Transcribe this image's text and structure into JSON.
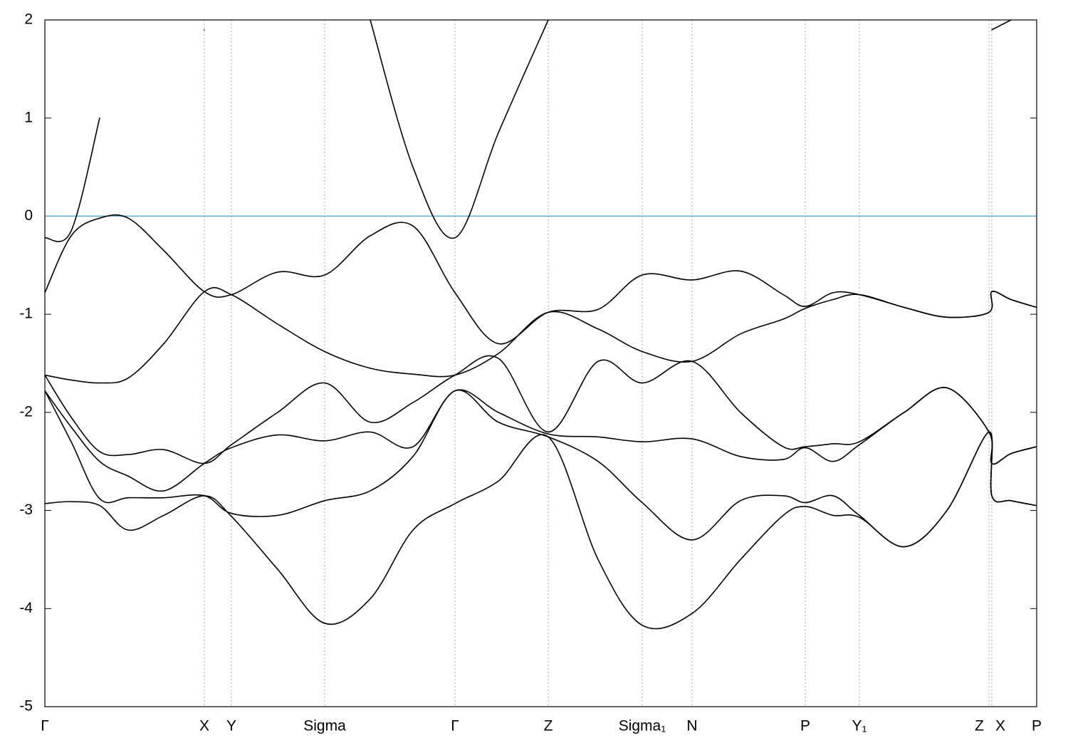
{
  "chart_data": {
    "type": "line",
    "x": [
      0,
      0.37,
      0.77,
      1.17,
      1.67,
      2.24,
      2.62,
      3.27,
      3.93,
      4.57,
      5.17,
      5.76,
      6.37,
      7.07,
      7.77,
      8.39,
      9.09,
      9.77,
      10.37,
      10.68,
      11.07,
      11.44,
      12.07,
      12.67,
      13.26,
      13.3,
      13.57,
      13.93
    ],
    "series": [
      {
        "color": "#000000",
        "values": [
          -2.93,
          -2.91,
          -2.95,
          -3.2,
          -3.05,
          -2.85,
          -3.06,
          -3.6,
          -4.15,
          -3.9,
          -3.2,
          -2.93,
          -2.7,
          -2.25,
          -3.5,
          -4.17,
          -4.05,
          -3.5,
          -3.05,
          -2.96,
          -3.05,
          -3.07,
          -3.37,
          -3.0,
          -2.2,
          -2.85,
          -2.9,
          -2.95
        ]
      },
      {
        "color": "#000000",
        "values": [
          -1.78,
          -2.3,
          -2.88,
          -2.87,
          -2.87,
          -2.85,
          -3.03,
          -3.05,
          -2.9,
          -2.8,
          -2.45,
          -1.78,
          -2.1,
          -2.25,
          -2.5,
          -2.92,
          -3.3,
          -2.9,
          -2.85,
          -2.92,
          -2.85,
          -3.05,
          -3.37,
          -3.0,
          -2.2,
          -2.85,
          -2.9,
          -2.95
        ]
      },
      {
        "color": "#000000",
        "values": [
          -1.78,
          -2.15,
          -2.5,
          -2.65,
          -2.8,
          -2.52,
          -2.36,
          -2.23,
          -2.29,
          -2.2,
          -2.35,
          -1.78,
          -2.0,
          -2.22,
          -2.25,
          -2.3,
          -2.27,
          -2.45,
          -2.48,
          -2.36,
          -2.5,
          -2.33,
          -2.0,
          -1.75,
          -2.2,
          -2.52,
          -2.42,
          -2.35
        ]
      },
      {
        "color": "#000000",
        "values": [
          -1.62,
          -2.05,
          -2.4,
          -2.43,
          -2.38,
          -2.52,
          -2.33,
          -2.0,
          -1.7,
          -2.1,
          -1.9,
          -1.62,
          -1.45,
          -2.2,
          -1.48,
          -1.7,
          -1.48,
          -2.0,
          -2.35,
          -2.35,
          -2.32,
          -2.3,
          -2.0,
          -1.75,
          -2.2,
          -2.52,
          -2.42,
          -2.35
        ]
      },
      {
        "color": "#000000",
        "values": [
          -1.62,
          -1.67,
          -1.7,
          -1.65,
          -1.3,
          -0.77,
          -0.8,
          -1.1,
          -1.38,
          -1.55,
          -1.61,
          -1.62,
          -1.4,
          -0.98,
          -1.15,
          -1.38,
          -1.48,
          -1.2,
          -1.05,
          -0.94,
          -0.85,
          -0.8,
          -0.93,
          -1.03,
          -0.98,
          -0.77,
          -0.85,
          -0.93
        ]
      },
      {
        "color": "#000000",
        "values": [
          -0.78,
          -0.2,
          -0.02,
          -0.02,
          -0.35,
          -0.77,
          -0.8,
          -0.57,
          -0.6,
          -0.2,
          -0.1,
          -0.78,
          -1.3,
          -0.98,
          -0.95,
          -0.6,
          -0.65,
          -0.56,
          -0.8,
          -0.92,
          -0.78,
          -0.8,
          -0.93,
          -1.03,
          -0.98,
          -0.77,
          -0.85,
          -0.93
        ]
      },
      {
        "color": "#000000",
        "values": [
          -0.22,
          -0.15,
          1.0,
          null,
          null,
          1.9,
          null,
          null,
          null,
          2.0,
          0.5,
          -0.22,
          0.85,
          2.0,
          null,
          null,
          null,
          null,
          null,
          null,
          null,
          null,
          null,
          null,
          null,
          1.9,
          2.0,
          null
        ]
      }
    ],
    "xlim": [
      0,
      13.93
    ],
    "xticks": [
      {
        "value": 0,
        "label": "Γ"
      },
      {
        "value": 2.24,
        "label": "X"
      },
      {
        "value": 2.62,
        "label": "Y"
      },
      {
        "value": 3.93,
        "label": "Sigma"
      },
      {
        "value": 5.76,
        "label": "Γ"
      },
      {
        "value": 7.07,
        "label": "Z"
      },
      {
        "value": 8.39,
        "label": "Sigma₁"
      },
      {
        "value": 9.09,
        "label": "N"
      },
      {
        "value": 10.68,
        "label": "P"
      },
      {
        "value": 11.44,
        "label": "Y₁"
      },
      {
        "value": 13.26,
        "label": "Z"
      },
      {
        "value": 13.3,
        "label": "X"
      },
      {
        "value": 13.93,
        "label": "P"
      }
    ],
    "ylim": [
      -5,
      2
    ],
    "yticks": [
      -5,
      -4,
      -3,
      -2,
      -1,
      0,
      1,
      2
    ],
    "xgrid": true,
    "hline": {
      "value": 0,
      "color": "#5ab0c8"
    }
  }
}
